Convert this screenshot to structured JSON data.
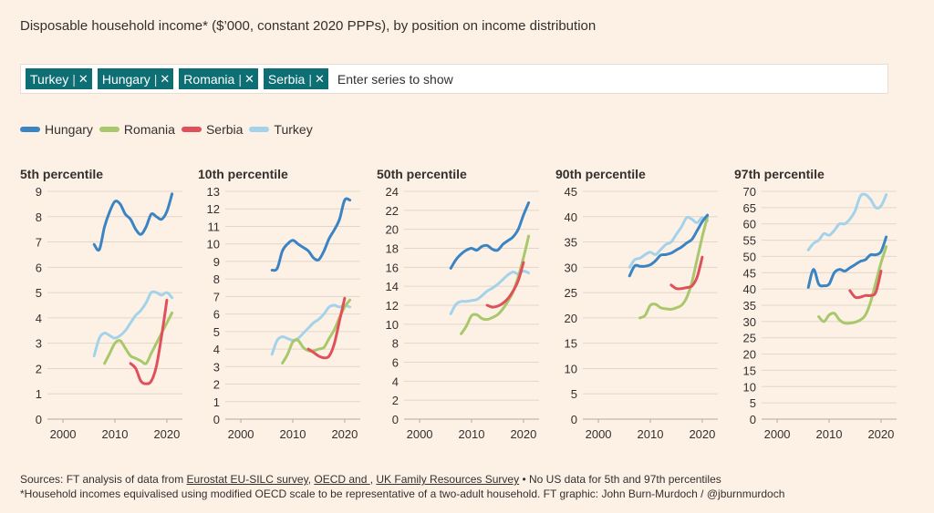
{
  "title": "Disposable household income* ($’000, constant 2020 PPPs), by position on income distribution",
  "selector": {
    "chips": [
      {
        "label": "Turkey",
        "remove": "✕"
      },
      {
        "label": "Hungary",
        "remove": "✕"
      },
      {
        "label": "Romania",
        "remove": "✕"
      },
      {
        "label": "Serbia",
        "remove": "✕"
      }
    ],
    "placeholder": "Enter series to show"
  },
  "legend": [
    {
      "name": "Hungary",
      "color": "#3a84c4"
    },
    {
      "name": "Romania",
      "color": "#a8c86b"
    },
    {
      "name": "Serbia",
      "color": "#e0505a"
    },
    {
      "name": "Turkey",
      "color": "#a3d3ea"
    }
  ],
  "chart_data": [
    {
      "type": "line",
      "title": "5th percentile",
      "ylim": [
        0,
        9
      ],
      "yticks": [
        0,
        1,
        2,
        3,
        4,
        5,
        6,
        7,
        8,
        9
      ],
      "xlim": [
        1997,
        2023
      ],
      "xticks": [
        2000,
        2010,
        2020
      ],
      "grid": true,
      "series": [
        {
          "name": "Hungary",
          "color": "#3a84c4",
          "x": [
            2006,
            2007,
            2008,
            2009,
            2010,
            2011,
            2012,
            2013,
            2014,
            2015,
            2016,
            2017,
            2018,
            2019,
            2020,
            2021
          ],
          "y": [
            6.9,
            6.7,
            7.6,
            8.2,
            8.6,
            8.5,
            8.1,
            7.9,
            7.5,
            7.3,
            7.6,
            8.1,
            8.0,
            7.9,
            8.2,
            8.9
          ]
        },
        {
          "name": "Romania",
          "color": "#a8c86b",
          "x": [
            2008,
            2009,
            2010,
            2011,
            2012,
            2013,
            2014,
            2015,
            2016,
            2017,
            2018,
            2019,
            2020,
            2021
          ],
          "y": [
            2.2,
            2.6,
            3.0,
            3.1,
            2.8,
            2.5,
            2.4,
            2.3,
            2.2,
            2.6,
            3.0,
            3.4,
            3.8,
            4.2
          ]
        },
        {
          "name": "Serbia",
          "color": "#e0505a",
          "x": [
            2013,
            2014,
            2015,
            2016,
            2017,
            2018,
            2019,
            2020
          ],
          "y": [
            2.2,
            2.0,
            1.5,
            1.4,
            1.5,
            2.1,
            3.3,
            4.7
          ]
        },
        {
          "name": "Turkey",
          "color": "#a3d3ea",
          "x": [
            2006,
            2007,
            2008,
            2009,
            2010,
            2011,
            2012,
            2013,
            2014,
            2015,
            2016,
            2017,
            2018,
            2019,
            2020,
            2021
          ],
          "y": [
            2.5,
            3.2,
            3.4,
            3.3,
            3.2,
            3.3,
            3.5,
            3.8,
            4.1,
            4.3,
            4.6,
            5.0,
            5.0,
            4.9,
            5.0,
            4.8
          ]
        }
      ]
    },
    {
      "type": "line",
      "title": "10th percentile",
      "ylim": [
        0,
        13
      ],
      "yticks": [
        0,
        1,
        2,
        3,
        4,
        5,
        6,
        7,
        8,
        9,
        10,
        11,
        12,
        13
      ],
      "xlim": [
        1997,
        2023
      ],
      "xticks": [
        2000,
        2010,
        2020
      ],
      "grid": true,
      "series": [
        {
          "name": "Hungary",
          "color": "#3a84c4",
          "x": [
            2006,
            2007,
            2008,
            2009,
            2010,
            2011,
            2012,
            2013,
            2014,
            2015,
            2016,
            2017,
            2018,
            2019,
            2020,
            2021
          ],
          "y": [
            8.5,
            8.6,
            9.6,
            10.0,
            10.2,
            10.0,
            9.8,
            9.6,
            9.2,
            9.1,
            9.6,
            10.3,
            10.8,
            11.4,
            12.5,
            12.5
          ]
        },
        {
          "name": "Romania",
          "color": "#a8c86b",
          "x": [
            2008,
            2009,
            2010,
            2011,
            2012,
            2013,
            2014,
            2015,
            2016,
            2017,
            2018,
            2019,
            2020,
            2021
          ],
          "y": [
            3.2,
            3.7,
            4.4,
            4.5,
            4.1,
            3.9,
            3.9,
            4.0,
            4.1,
            4.6,
            5.1,
            5.8,
            6.4,
            6.8
          ]
        },
        {
          "name": "Serbia",
          "color": "#e0505a",
          "x": [
            2013,
            2014,
            2015,
            2016,
            2017,
            2018,
            2019,
            2020
          ],
          "y": [
            4.0,
            3.8,
            3.6,
            3.5,
            3.6,
            4.3,
            5.6,
            6.9
          ]
        },
        {
          "name": "Turkey",
          "color": "#a3d3ea",
          "x": [
            2006,
            2007,
            2008,
            2009,
            2010,
            2011,
            2012,
            2013,
            2014,
            2015,
            2016,
            2017,
            2018,
            2019,
            2020,
            2021
          ],
          "y": [
            3.7,
            4.5,
            4.7,
            4.6,
            4.5,
            4.6,
            4.9,
            5.2,
            5.5,
            5.7,
            6.0,
            6.4,
            6.5,
            6.4,
            6.5,
            6.4
          ]
        }
      ]
    },
    {
      "type": "line",
      "title": "50th percentile",
      "ylim": [
        0,
        24
      ],
      "yticks": [
        0,
        2,
        4,
        6,
        8,
        10,
        12,
        14,
        16,
        18,
        20,
        22,
        24
      ],
      "xlim": [
        1997,
        2023
      ],
      "xticks": [
        2000,
        2010,
        2020
      ],
      "grid": true,
      "series": [
        {
          "name": "Hungary",
          "color": "#3a84c4",
          "x": [
            2006,
            2007,
            2008,
            2009,
            2010,
            2011,
            2012,
            2013,
            2014,
            2015,
            2016,
            2017,
            2018,
            2019,
            2020,
            2021
          ],
          "y": [
            15.9,
            16.8,
            17.4,
            17.8,
            18.0,
            17.8,
            18.2,
            18.3,
            17.9,
            17.8,
            18.4,
            18.8,
            19.2,
            20.0,
            21.5,
            22.8
          ]
        },
        {
          "name": "Romania",
          "color": "#a8c86b",
          "x": [
            2008,
            2009,
            2010,
            2011,
            2012,
            2013,
            2014,
            2015,
            2016,
            2017,
            2018,
            2019,
            2020,
            2021
          ],
          "y": [
            9.0,
            9.8,
            10.9,
            11.0,
            10.6,
            10.5,
            10.7,
            11.0,
            11.6,
            12.4,
            13.4,
            15.0,
            17.0,
            19.3
          ]
        },
        {
          "name": "Serbia",
          "color": "#e0505a",
          "x": [
            2013,
            2014,
            2015,
            2016,
            2017,
            2018,
            2019,
            2020
          ],
          "y": [
            12.0,
            11.8,
            11.9,
            12.2,
            12.7,
            13.5,
            14.6,
            16.5
          ]
        },
        {
          "name": "Turkey",
          "color": "#a3d3ea",
          "x": [
            2006,
            2007,
            2008,
            2009,
            2010,
            2011,
            2012,
            2013,
            2014,
            2015,
            2016,
            2017,
            2018,
            2019,
            2020,
            2021
          ],
          "y": [
            11.1,
            12.1,
            12.4,
            12.4,
            12.5,
            12.6,
            13.0,
            13.5,
            13.8,
            14.2,
            14.7,
            15.2,
            15.5,
            15.3,
            15.6,
            15.4
          ]
        }
      ]
    },
    {
      "type": "line",
      "title": "90th percentile",
      "ylim": [
        0,
        45
      ],
      "yticks": [
        0,
        5,
        10,
        15,
        20,
        25,
        30,
        35,
        40,
        45
      ],
      "xlim": [
        1997,
        2023
      ],
      "xticks": [
        2000,
        2010,
        2020
      ],
      "grid": true,
      "series": [
        {
          "name": "Hungary",
          "color": "#3a84c4",
          "x": [
            2006,
            2007,
            2008,
            2009,
            2010,
            2011,
            2012,
            2013,
            2014,
            2015,
            2016,
            2017,
            2018,
            2019,
            2020,
            2021
          ],
          "y": [
            28.3,
            30.3,
            30.2,
            30.2,
            30.5,
            31.3,
            32.4,
            32.5,
            32.8,
            33.4,
            34.0,
            34.8,
            35.5,
            37.2,
            39.0,
            40.3
          ]
        },
        {
          "name": "Romania",
          "color": "#a8c86b",
          "x": [
            2008,
            2009,
            2010,
            2011,
            2012,
            2013,
            2014,
            2015,
            2016,
            2017,
            2018,
            2019,
            2020,
            2021
          ],
          "y": [
            20.0,
            20.5,
            22.5,
            22.7,
            22.0,
            21.8,
            21.7,
            22.0,
            22.5,
            24.0,
            27.0,
            31.5,
            36.0,
            40.0
          ]
        },
        {
          "name": "Serbia",
          "color": "#e0505a",
          "x": [
            2014,
            2015,
            2016,
            2017,
            2018,
            2019,
            2020
          ],
          "y": [
            26.5,
            25.8,
            25.8,
            26.0,
            26.3,
            28.0,
            32.0
          ]
        },
        {
          "name": "Turkey",
          "color": "#a3d3ea",
          "x": [
            2006,
            2007,
            2008,
            2009,
            2010,
            2011,
            2012,
            2013,
            2014,
            2015,
            2016,
            2017,
            2018,
            2019,
            2020,
            2021
          ],
          "y": [
            30.0,
            31.5,
            31.8,
            32.5,
            33.0,
            32.5,
            33.5,
            34.5,
            35.0,
            36.5,
            38.0,
            39.8,
            39.5,
            38.8,
            39.8,
            39.2
          ]
        }
      ]
    },
    {
      "type": "line",
      "title": "97th percentile",
      "ylim": [
        0,
        70
      ],
      "yticks": [
        0,
        5,
        10,
        15,
        20,
        25,
        30,
        35,
        40,
        45,
        50,
        55,
        60,
        65,
        70
      ],
      "xlim": [
        1997,
        2023
      ],
      "xticks": [
        2000,
        2010,
        2020
      ],
      "grid": true,
      "series": [
        {
          "name": "Hungary",
          "color": "#3a84c4",
          "x": [
            2006,
            2007,
            2008,
            2009,
            2010,
            2011,
            2012,
            2013,
            2014,
            2015,
            2016,
            2017,
            2018,
            2019,
            2020,
            2021
          ],
          "y": [
            40.5,
            46.0,
            41.5,
            41.0,
            41.5,
            45.0,
            46.0,
            45.5,
            46.5,
            47.5,
            48.5,
            49.0,
            50.5,
            50.5,
            51.5,
            56.0
          ]
        },
        {
          "name": "Romania",
          "color": "#a8c86b",
          "x": [
            2008,
            2009,
            2010,
            2011,
            2012,
            2013,
            2014,
            2015,
            2016,
            2017,
            2018,
            2019,
            2020,
            2021
          ],
          "y": [
            31.5,
            30.0,
            32.0,
            32.5,
            30.5,
            29.5,
            29.5,
            29.8,
            30.5,
            32.0,
            36.0,
            42.0,
            48.0,
            53.0
          ]
        },
        {
          "name": "Serbia",
          "color": "#e0505a",
          "x": [
            2014,
            2015,
            2016,
            2017,
            2018,
            2019,
            2020
          ],
          "y": [
            39.5,
            37.5,
            37.5,
            38.0,
            38.0,
            39.0,
            45.5
          ]
        },
        {
          "name": "Turkey",
          "color": "#a3d3ea",
          "x": [
            2006,
            2007,
            2008,
            2009,
            2010,
            2011,
            2012,
            2013,
            2014,
            2015,
            2016,
            2017,
            2018,
            2019,
            2020,
            2021
          ],
          "y": [
            52.0,
            54.0,
            55.0,
            57.0,
            56.5,
            58.0,
            60.0,
            60.0,
            61.5,
            64.0,
            68.5,
            69.0,
            67.5,
            65.0,
            65.5,
            69.0
          ]
        }
      ]
    }
  ],
  "footer": {
    "sources_prefix": "Sources: FT analysis of data from ",
    "link1": "Eurostat EU-SILC survey",
    "sep1": ", ",
    "link2": "OECD and ",
    "sep2": ", ",
    "link3": "UK Family Resources Survey",
    "sources_suffix": " • No US data for 5th and 97th percentiles",
    "note": "*Household incomes equivalised using modified OECD scale to be representative of a two-adult household. FT graphic: John Burn-Murdoch / @jburnmurdoch"
  }
}
